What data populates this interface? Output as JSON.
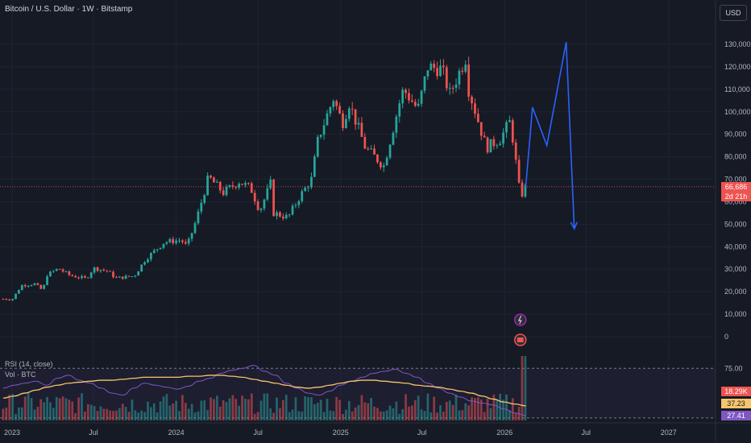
{
  "header": {
    "title": "Bitcoin / U.S. Dollar · 1W · Bitstamp",
    "currency": "USD"
  },
  "indicators": {
    "rsi_label": "RSI (14, close)",
    "vol_label": "Vol · BTC"
  },
  "tags": {
    "price": "66,686",
    "countdown": "2d 21h",
    "vol": "18.29K",
    "rsi_ma": "37.23",
    "rsi": "27.41"
  },
  "colors": {
    "background": "#161a25",
    "up": "#26a69a",
    "down": "#ef5350",
    "projection": "#2962ff",
    "rsi": "#7e57c2",
    "rsi_ma": "#f7c56b",
    "text": "#b2b5be"
  },
  "chart_data": [
    {
      "type": "candlestick",
      "title": "Bitcoin / U.S. Dollar · 1W · Bitstamp",
      "x_ticks": [
        "2023",
        "Jul",
        "2024",
        "Jul",
        "2025",
        "Jul",
        "2026",
        "Jul",
        "2027"
      ],
      "y_ticks": [
        0,
        10000,
        20000,
        30000,
        40000,
        50000,
        60000,
        70000,
        80000,
        90000,
        100000,
        110000,
        120000,
        130000
      ],
      "ylim": [
        0,
        135000
      ],
      "x_range": [
        "2022-12-05",
        "2027-04-01"
      ],
      "anchor_closes": [
        [
          "2022-12-12",
          16800
        ],
        [
          "2023-01-01",
          16600
        ],
        [
          "2023-01-22",
          22800
        ],
        [
          "2023-02-20",
          23500
        ],
        [
          "2023-03-10",
          20500
        ],
        [
          "2023-03-20",
          27500
        ],
        [
          "2023-04-14",
          30300
        ],
        [
          "2023-05-10",
          27200
        ],
        [
          "2023-06-15",
          25800
        ],
        [
          "2023-07-01",
          30500
        ],
        [
          "2023-08-01",
          29200
        ],
        [
          "2023-08-20",
          26000
        ],
        [
          "2023-09-30",
          27000
        ],
        [
          "2023-10-25",
          34500
        ],
        [
          "2023-12-05",
          42000
        ],
        [
          "2024-01-12",
          43000
        ],
        [
          "2024-01-25",
          40000
        ],
        [
          "2024-02-15",
          52000
        ],
        [
          "2024-03-13",
          71000
        ],
        [
          "2024-04-15",
          64000
        ],
        [
          "2024-05-20",
          69000
        ],
        [
          "2024-06-15",
          66000
        ],
        [
          "2024-07-05",
          56000
        ],
        [
          "2024-07-29",
          68000
        ],
        [
          "2024-08-05",
          55000
        ],
        [
          "2024-09-06",
          53000
        ],
        [
          "2024-10-01",
          62000
        ],
        [
          "2024-10-28",
          70000
        ],
        [
          "2024-11-12",
          88000
        ],
        [
          "2024-12-16",
          106000
        ],
        [
          "2025-01-05",
          95000
        ],
        [
          "2025-01-20",
          104000
        ],
        [
          "2025-02-25",
          84000
        ],
        [
          "2025-04-07",
          76000
        ],
        [
          "2025-05-12",
          104000
        ],
        [
          "2025-05-21",
          110000
        ],
        [
          "2025-06-22",
          101000
        ],
        [
          "2025-07-14",
          120000
        ],
        [
          "2025-08-14",
          119000
        ],
        [
          "2025-09-01",
          108000
        ],
        [
          "2025-10-06",
          124000
        ],
        [
          "2025-10-10",
          112000
        ],
        [
          "2025-11-21",
          84000
        ],
        [
          "2025-12-22",
          88000
        ],
        [
          "2026-01-14",
          96000
        ],
        [
          "2026-02-05",
          62000
        ],
        [
          "2026-02-17",
          66686
        ]
      ],
      "projection_path": [
        [
          "2026-02-17",
          66686
        ],
        [
          "2026-03-04",
          102000
        ],
        [
          "2026-04-05",
          85000
        ],
        [
          "2026-05-18",
          131000
        ],
        [
          "2026-06-05",
          48000
        ]
      ],
      "last_price": 66686
    },
    {
      "type": "line",
      "title": "RSI (14, close)",
      "series": [
        {
          "name": "RSI",
          "values": [
            55,
            58,
            60,
            62,
            58,
            65,
            68,
            63,
            60,
            55,
            50,
            48,
            55,
            60,
            58,
            56,
            54,
            57,
            62,
            65,
            70,
            73,
            75,
            78,
            72,
            68,
            60,
            55,
            50,
            48,
            52,
            58,
            62,
            66,
            70,
            72,
            74,
            70,
            66,
            60,
            55,
            50,
            46,
            42,
            40,
            38,
            34,
            30,
            27.41
          ]
        },
        {
          "name": "RSI MA",
          "values": [
            45,
            47,
            50,
            53,
            56,
            58,
            60,
            61,
            62,
            63,
            63,
            64,
            65,
            66,
            66,
            66,
            66,
            67,
            67,
            68,
            68,
            67,
            66,
            64,
            62,
            60,
            58,
            56,
            55,
            56,
            58,
            60,
            62,
            63,
            63,
            62,
            61,
            60,
            58,
            57,
            56,
            54,
            52,
            50,
            47,
            44,
            41,
            39,
            37.23
          ]
        }
      ],
      "levels": [
        75,
        25
      ]
    },
    {
      "type": "bar",
      "title": "Vol · BTC",
      "last_value": "18.29K",
      "spike_index": 46
    }
  ]
}
